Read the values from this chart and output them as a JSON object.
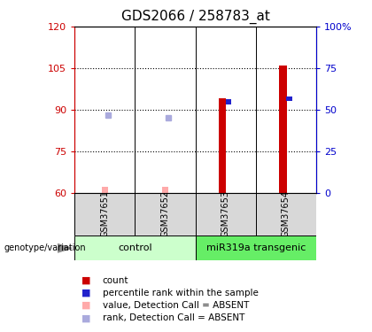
{
  "title": "GDS2066 / 258783_at",
  "samples": [
    "GSM37651",
    "GSM37652",
    "GSM37653",
    "GSM37654"
  ],
  "group_labels": [
    "control",
    "miR319a transgenic"
  ],
  "ylim_left": [
    60,
    120
  ],
  "ylim_right": [
    0,
    100
  ],
  "yticks_left": [
    60,
    75,
    90,
    105,
    120
  ],
  "yticks_right": [
    0,
    25,
    50,
    75,
    100
  ],
  "yticklabels_right": [
    "0",
    "25",
    "50",
    "75",
    "100%"
  ],
  "left_axis_color": "#cc0000",
  "right_axis_color": "#0000cc",
  "count_values": [
    null,
    null,
    94,
    106
  ],
  "rank_values": [
    null,
    null,
    92,
    93
  ],
  "absent_value": [
    62,
    62,
    null,
    null
  ],
  "absent_rank": [
    88,
    87,
    null,
    null
  ],
  "count_color": "#cc0000",
  "rank_color": "#2222cc",
  "absent_value_color": "#ffaaaa",
  "absent_rank_color": "#aaaadd",
  "sample_box_color": "#d8d8d8",
  "group1_color": "#ccffcc",
  "group2_color": "#66ee66",
  "title_fontsize": 11,
  "tick_fontsize": 8,
  "legend_fontsize": 7.5
}
